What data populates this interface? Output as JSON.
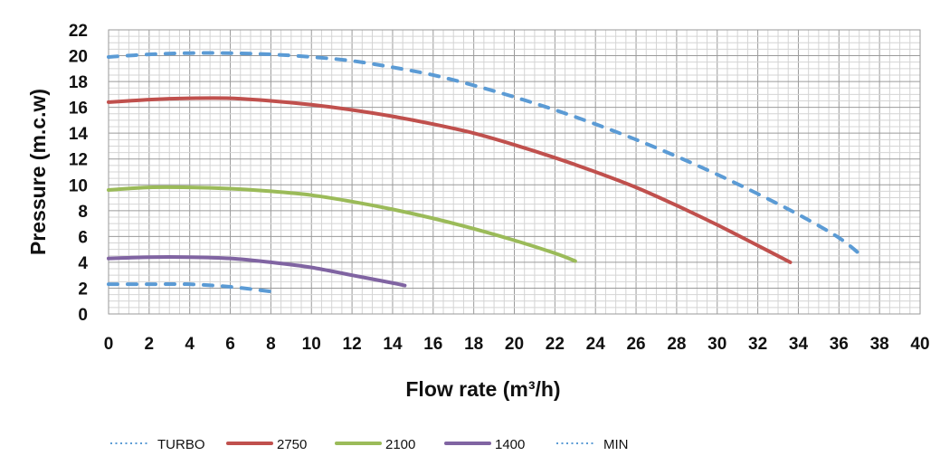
{
  "chart_data": {
    "type": "line",
    "title": "",
    "xlabel": "Flow rate (m³/h)",
    "ylabel": "Pressure (m.c.w)",
    "xlim": [
      0,
      40
    ],
    "ylim": [
      0,
      22
    ],
    "x_ticks": [
      "0",
      "2",
      "4",
      "6",
      "8",
      "10",
      "12",
      "14",
      "16",
      "18",
      "20",
      "22",
      "24",
      "26",
      "28",
      "30",
      "32",
      "34",
      "36",
      "38",
      "40"
    ],
    "y_ticks": [
      "0",
      "2",
      "4",
      "6",
      "8",
      "10",
      "12",
      "14",
      "16",
      "18",
      "20",
      "22"
    ],
    "grid": true,
    "legend_position": "bottom",
    "series": [
      {
        "name": "TURBO",
        "color": "#5b9bd5",
        "style": "dashed",
        "x": [
          0,
          2,
          4,
          6,
          8,
          10,
          12,
          14,
          16,
          18,
          20,
          22,
          24,
          26,
          28,
          30,
          32,
          34,
          36,
          37.2
        ],
        "y": [
          19.9,
          20.1,
          20.2,
          20.2,
          20.1,
          19.9,
          19.6,
          19.1,
          18.5,
          17.7,
          16.8,
          15.8,
          14.7,
          13.5,
          12.2,
          10.8,
          9.3,
          7.7,
          5.9,
          4.4
        ]
      },
      {
        "name": "2750",
        "color": "#c0504d",
        "style": "solid",
        "x": [
          0,
          2,
          4,
          6,
          8,
          10,
          12,
          14,
          16,
          18,
          20,
          22,
          24,
          26,
          28,
          30,
          32,
          33.6
        ],
        "y": [
          16.4,
          16.6,
          16.7,
          16.7,
          16.5,
          16.2,
          15.8,
          15.3,
          14.7,
          14.0,
          13.1,
          12.1,
          11.0,
          9.8,
          8.4,
          6.9,
          5.3,
          4.0
        ]
      },
      {
        "name": "2100",
        "color": "#9bbb59",
        "style": "solid",
        "x": [
          0,
          2,
          4,
          6,
          8,
          10,
          12,
          14,
          16,
          18,
          20,
          22,
          23
        ],
        "y": [
          9.6,
          9.8,
          9.8,
          9.7,
          9.5,
          9.2,
          8.7,
          8.1,
          7.4,
          6.6,
          5.7,
          4.7,
          4.1
        ]
      },
      {
        "name": "1400",
        "color": "#8064a2",
        "style": "solid",
        "x": [
          0,
          2,
          4,
          6,
          8,
          10,
          12,
          14,
          14.6
        ],
        "y": [
          4.3,
          4.4,
          4.4,
          4.3,
          4.0,
          3.6,
          3.0,
          2.4,
          2.2
        ]
      },
      {
        "name": "MIN",
        "color": "#5b9bd5",
        "style": "dashed",
        "x": [
          0,
          2,
          4,
          6,
          8.2
        ],
        "y": [
          2.3,
          2.3,
          2.3,
          2.1,
          1.7
        ]
      }
    ]
  }
}
